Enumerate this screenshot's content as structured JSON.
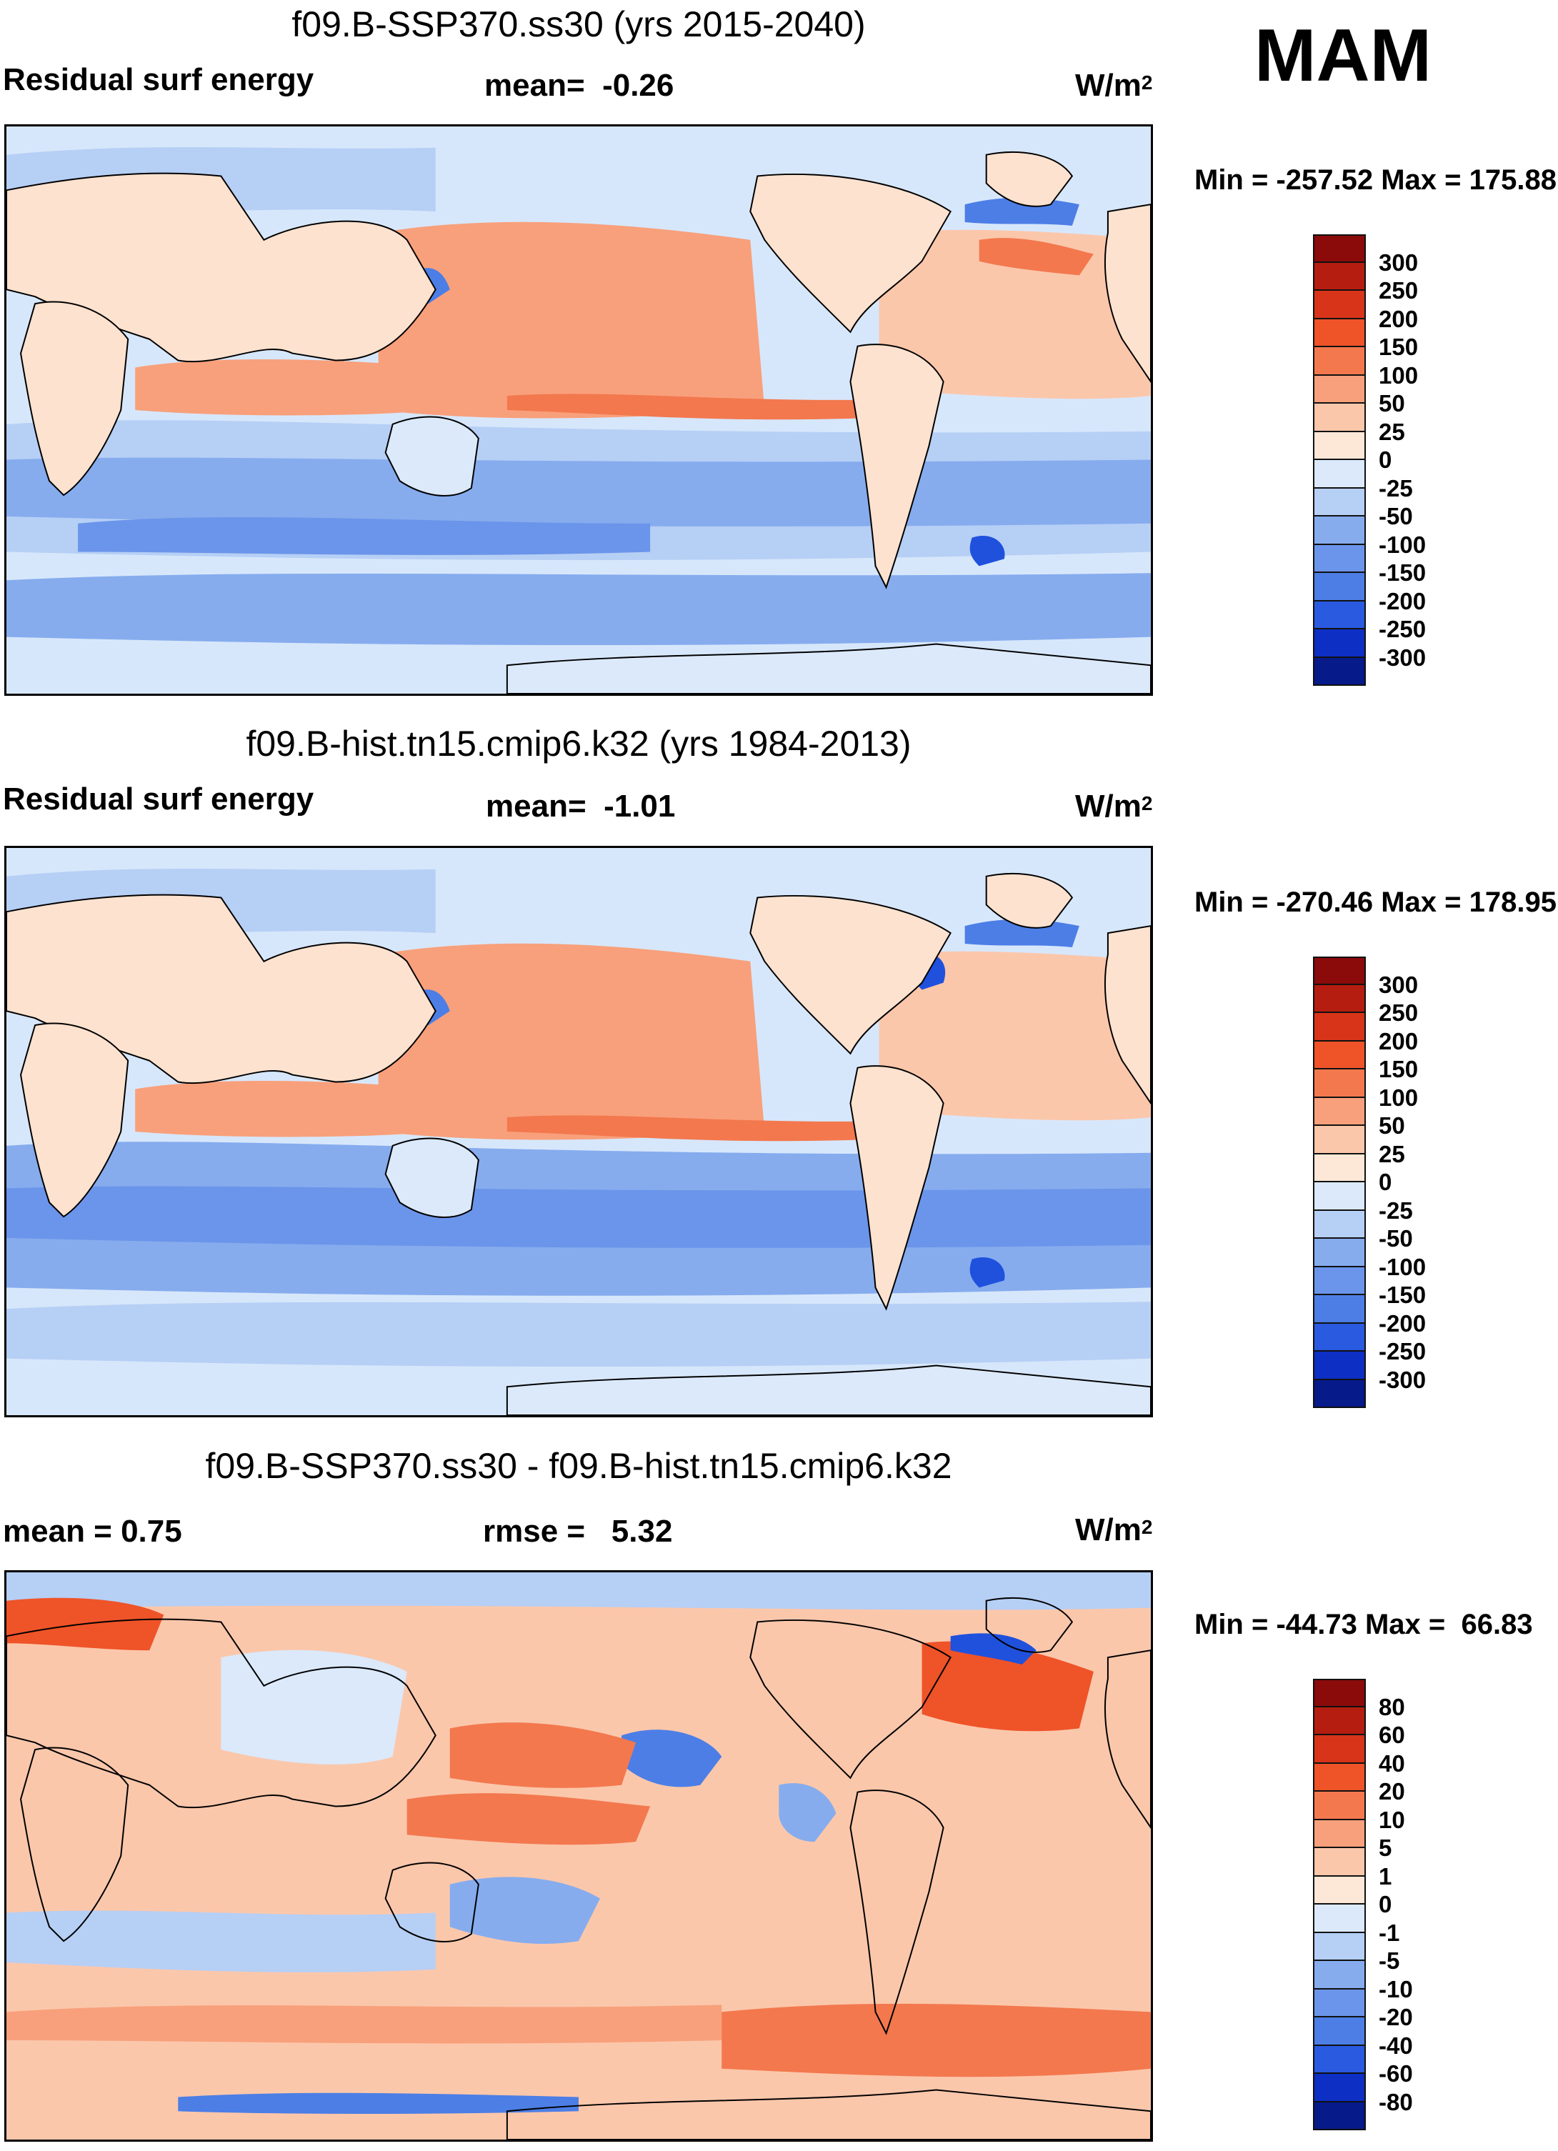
{
  "season": "MAM",
  "colors": {
    "warm": [
      "#fde2cf",
      "#fbbfa0",
      "#f59c74",
      "#ef6f47",
      "#e0401e",
      "#c32010",
      "#8b0a0a"
    ],
    "cool": [
      "#dbe9fb",
      "#b6cff5",
      "#86acee",
      "#4c7ee6",
      "#1f51dd",
      "#0d2fc4",
      "#061d96",
      "#02107a"
    ],
    "ocean_bg": "#d7e7fb",
    "land": "#fce6d6"
  },
  "panels": [
    {
      "title": "f09.B-SSP370.ss30 (yrs 2015-2040)",
      "left_text": "Residual surf energy",
      "mid_text": "mean=  -0.26",
      "units": "W/m",
      "units_sup": "2",
      "minmax": "Min = -257.52 Max = 175.88",
      "colorbar": {
        "levels": [
          "300",
          "250",
          "200",
          "150",
          "100",
          "50",
          "25",
          "0",
          "-25",
          "-50",
          "-100",
          "-150",
          "-200",
          "-250",
          "-300"
        ],
        "colors": [
          "#8b0a0a",
          "#b51d10",
          "#d7341a",
          "#ef5328",
          "#f3784e",
          "#f8a07b",
          "#fbc7ab",
          "#fde8d8",
          "#dbe9fb",
          "#b6cff5",
          "#86acee",
          "#6b95ea",
          "#4c7ee6",
          "#2a5ae0",
          "#0d2fc4",
          "#061a8a"
        ]
      }
    },
    {
      "title": "f09.B-hist.tn15.cmip6.k32 (yrs 1984-2013)",
      "left_text": "Residual surf energy",
      "mid_text": "mean=  -1.01",
      "units": "W/m",
      "units_sup": "2",
      "minmax": "Min = -270.46 Max = 178.95",
      "colorbar": {
        "levels": [
          "300",
          "250",
          "200",
          "150",
          "100",
          "50",
          "25",
          "0",
          "-25",
          "-50",
          "-100",
          "-150",
          "-200",
          "-250",
          "-300"
        ],
        "colors": [
          "#8b0a0a",
          "#b51d10",
          "#d7341a",
          "#ef5328",
          "#f3784e",
          "#f8a07b",
          "#fbc7ab",
          "#fde8d8",
          "#dbe9fb",
          "#b6cff5",
          "#86acee",
          "#6b95ea",
          "#4c7ee6",
          "#2a5ae0",
          "#0d2fc4",
          "#061a8a"
        ]
      }
    },
    {
      "title": "f09.B-SSP370.ss30 - f09.B-hist.tn15.cmip6.k32",
      "left_text": "mean =   0.75",
      "mid_text": "rmse =   5.32",
      "units": "W/m",
      "units_sup": "2",
      "minmax": "Min = -44.73 Max =  66.83",
      "colorbar": {
        "levels": [
          "80",
          "60",
          "40",
          "20",
          "10",
          "5",
          "1",
          "0",
          "-1",
          "-5",
          "-10",
          "-20",
          "-40",
          "-60",
          "-80"
        ],
        "colors": [
          "#8b0a0a",
          "#b51d10",
          "#d7341a",
          "#ef5328",
          "#f3784e",
          "#f8a07b",
          "#fbc7ab",
          "#fde8d8",
          "#dbe9fb",
          "#b6cff5",
          "#86acee",
          "#6b95ea",
          "#4c7ee6",
          "#2a5ae0",
          "#0d2fc4",
          "#061a8a"
        ]
      }
    }
  ]
}
